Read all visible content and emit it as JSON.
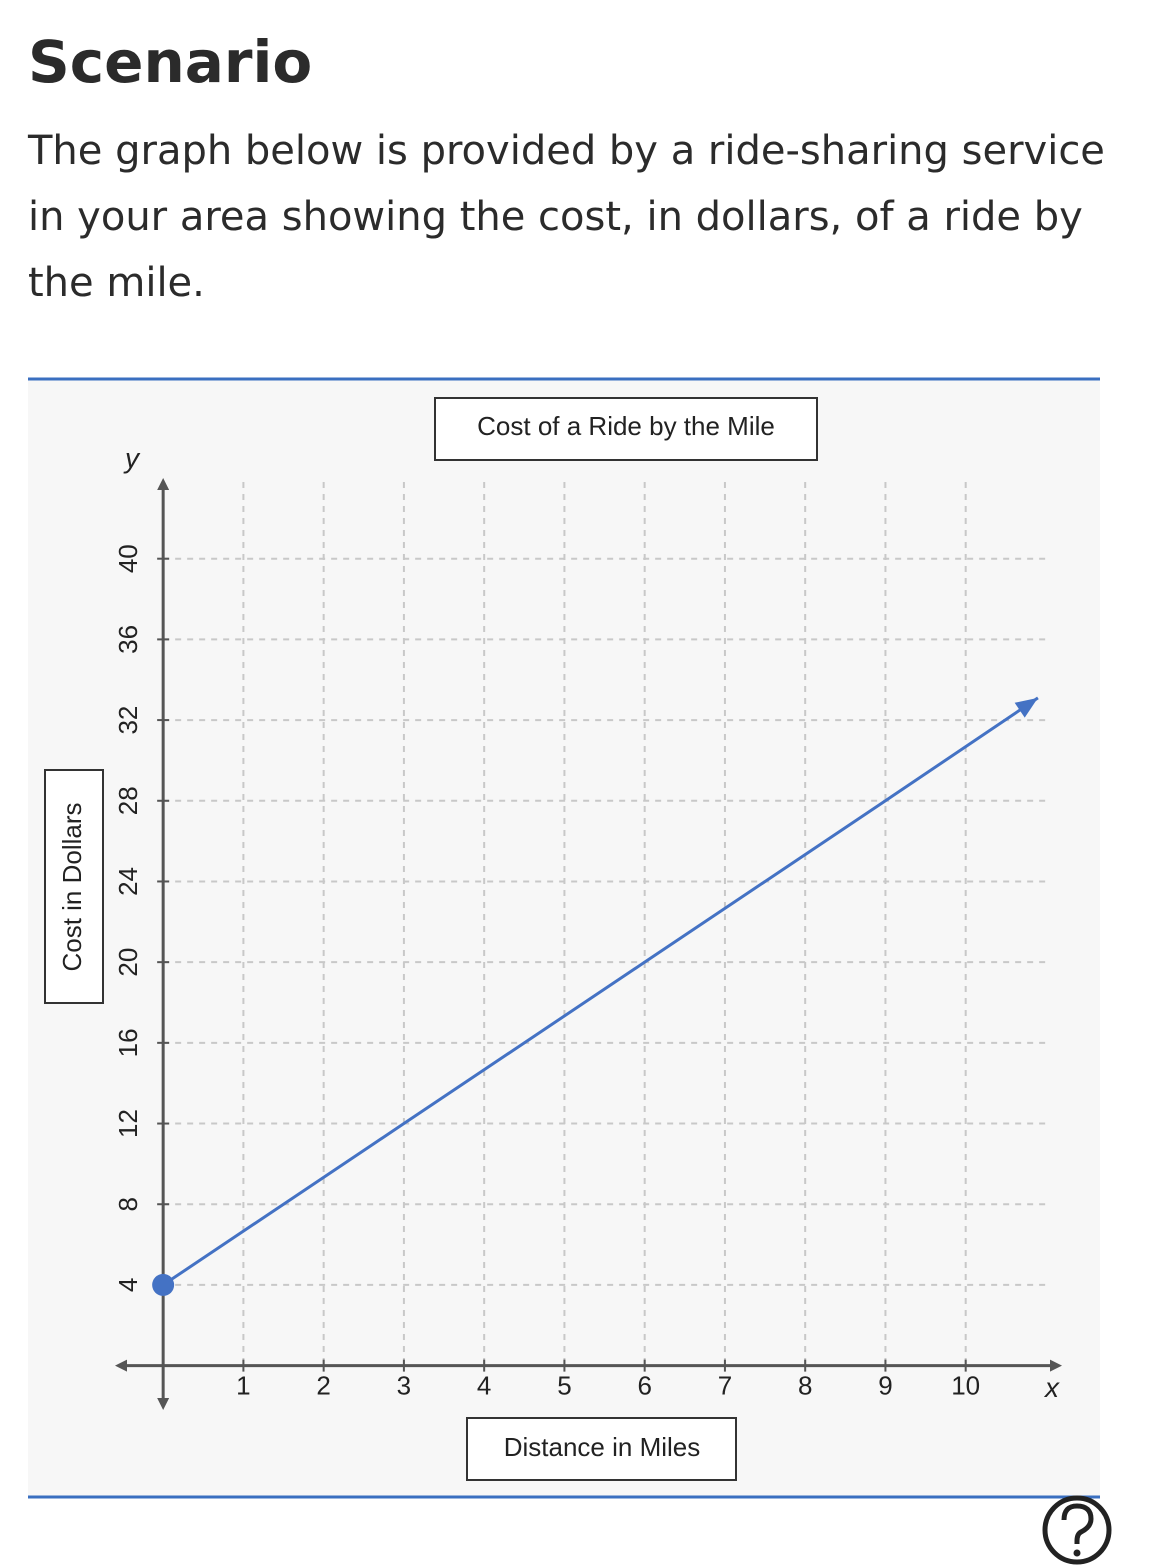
{
  "header": {
    "title": "Scenario"
  },
  "description": "The graph below is provided by a ride-sharing service in your area showing the cost, in dollars, of a ride by the mile.",
  "chart_data": {
    "type": "line",
    "title": "Cost of a Ride by the Mile",
    "x_label": "Distance in Miles",
    "y_label": "Cost in Dollars",
    "x_symbol": "x",
    "y_symbol": "y",
    "series": [
      {
        "name": "Cost",
        "color": "#4472c4",
        "x": [
          0,
          3,
          6,
          9,
          10.9
        ],
        "values": [
          4,
          12,
          20,
          28,
          33.1
        ]
      }
    ],
    "xlim": [
      -0.6,
      11.2
    ],
    "ylim": [
      -2.2,
      44
    ],
    "xticks": [
      1,
      2,
      3,
      4,
      5,
      6,
      7,
      8,
      9,
      10
    ],
    "yticks": [
      4,
      8,
      12,
      16,
      20,
      24,
      28,
      32,
      36,
      40
    ],
    "grid": true
  }
}
